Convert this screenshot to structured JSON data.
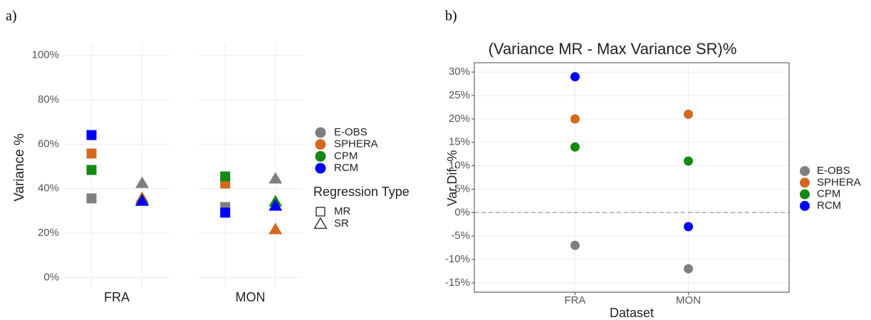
{
  "chart_data": [
    {
      "type": "faceted-scatter",
      "panel_label": "a)",
      "ylabel": "Variance %",
      "facets": [
        "FRA",
        "MON"
      ],
      "shape_legend": {
        "title": "Regression Type",
        "labels": [
          "MR",
          "SR"
        ]
      },
      "ylim": [
        -5,
        105
      ],
      "yticks": [
        {
          "value": 0,
          "label": "0%"
        },
        {
          "value": 20,
          "label": "20%"
        },
        {
          "value": 40,
          "label": "40%"
        },
        {
          "value": 60,
          "label": "60%"
        },
        {
          "value": 80,
          "label": "80%"
        },
        {
          "value": 100,
          "label": "100%"
        }
      ],
      "grid": true,
      "series": [
        {
          "name": "E-OBS",
          "color": "#7f7f7f",
          "values": [
            [
              35.6,
              42.6
            ],
            [
              31.7,
              44.6
            ]
          ]
        },
        {
          "name": "SPHERA",
          "color": "#d2691e",
          "values": [
            [
              55.8,
              35.9
            ],
            [
              42.3,
              21.8
            ]
          ]
        },
        {
          "name": "CPM",
          "color": "#138a13",
          "values": [
            [
              48.4,
              34.9
            ],
            [
              45.5,
              34.3
            ]
          ]
        },
        {
          "name": "RCM",
          "color": "#0000ff",
          "values": [
            [
              64.1,
              34.6
            ],
            [
              29.2,
              32.4
            ]
          ]
        }
      ]
    },
    {
      "type": "dot",
      "panel_label": "b)",
      "title": "(Variance MR - Max Variance SR)%",
      "xlabel": "Dataset",
      "ylabel": "Var.Dif. %",
      "categories": [
        "FRA",
        "MON"
      ],
      "ylim": [
        -17,
        32
      ],
      "yticks": [
        {
          "value": -15,
          "label": "-15%"
        },
        {
          "value": -10,
          "label": "-10%"
        },
        {
          "value": -5,
          "label": "-5%"
        },
        {
          "value": 0,
          "label": "0%"
        },
        {
          "value": 5,
          "label": "5%"
        },
        {
          "value": 10,
          "label": "10%"
        },
        {
          "value": 15,
          "label": "15%"
        },
        {
          "value": 20,
          "label": "20%"
        },
        {
          "value": 25,
          "label": "25%"
        },
        {
          "value": 30,
          "label": "30%"
        }
      ],
      "hline": 0,
      "grid": true,
      "series": [
        {
          "name": "E-OBS",
          "color": "#7f7f7f",
          "values": [
            -7,
            -12
          ]
        },
        {
          "name": "SPHERA",
          "color": "#d2691e",
          "values": [
            20,
            21
          ]
        },
        {
          "name": "CPM",
          "color": "#138a13",
          "values": [
            14,
            11
          ]
        },
        {
          "name": "RCM",
          "color": "#0000ff",
          "values": [
            29,
            -3
          ]
        }
      ]
    }
  ]
}
